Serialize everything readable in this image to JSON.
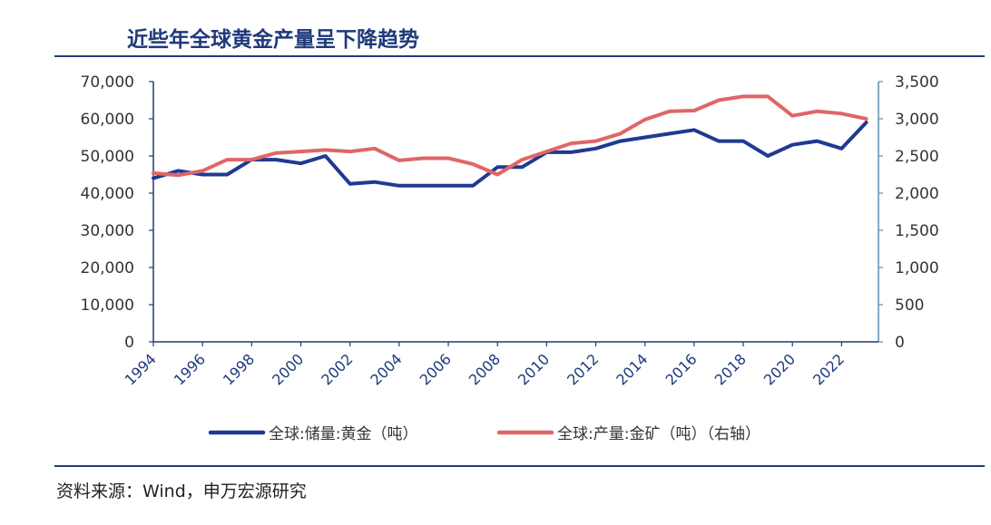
{
  "title": "近些年全球黄金产量呈下降趋势",
  "source": "资料来源：Wind，申万宏源研究",
  "chart_data": {
    "type": "line",
    "title": "近些年全球黄金产量呈下降趋势",
    "x_ticks": [
      "1994",
      "1996",
      "1998",
      "2000",
      "2002",
      "2004",
      "2006",
      "2008",
      "2010",
      "2012",
      "2014",
      "2016",
      "2018",
      "2020",
      "2022"
    ],
    "y_left": {
      "range": [
        0,
        70000
      ],
      "ticks": [
        "0",
        "10,000",
        "20,000",
        "30,000",
        "40,000",
        "50,000",
        "60,000",
        "70,000"
      ]
    },
    "y_right": {
      "range": [
        0,
        3500
      ],
      "ticks": [
        "0",
        "500",
        "1,000",
        "1,500",
        "2,000",
        "2,500",
        "3,000",
        "3,500"
      ]
    },
    "legend_position": "bottom",
    "grid": false,
    "series": [
      {
        "name": "全球:储量:黄金（吨）",
        "axis": "left",
        "color": "#1f3a93",
        "x": [
          1994,
          1995,
          1996,
          1997,
          1998,
          1999,
          2000,
          2001,
          2002,
          2003,
          2004,
          2005,
          2006,
          2007,
          2008,
          2009,
          2010,
          2011,
          2012,
          2013,
          2014,
          2015,
          2016,
          2017,
          2018,
          2019,
          2020,
          2021,
          2022,
          2023
        ],
        "y": [
          44000,
          46000,
          45000,
          45000,
          49000,
          49000,
          48000,
          50000,
          42500,
          43000,
          42000,
          42000,
          42000,
          42000,
          47000,
          47000,
          51000,
          51000,
          52000,
          54000,
          55000,
          56000,
          57000,
          54000,
          54000,
          50000,
          53000,
          54000,
          52000,
          59000
        ]
      },
      {
        "name": "全球:产量:金矿（吨）（右轴）",
        "axis": "right",
        "color": "#e06666",
        "x": [
          1994,
          1995,
          1996,
          1997,
          1998,
          1999,
          2000,
          2001,
          2002,
          2003,
          2004,
          2005,
          2006,
          2007,
          2008,
          2009,
          2010,
          2011,
          2012,
          2013,
          2014,
          2015,
          2016,
          2017,
          2018,
          2019,
          2020,
          2021,
          2022,
          2023
        ],
        "y": [
          2270,
          2240,
          2300,
          2450,
          2450,
          2540,
          2560,
          2580,
          2560,
          2600,
          2440,
          2470,
          2470,
          2390,
          2250,
          2450,
          2560,
          2670,
          2700,
          2800,
          2990,
          3100,
          3110,
          3250,
          3300,
          3300,
          3040,
          3100,
          3070,
          3000
        ]
      }
    ]
  }
}
